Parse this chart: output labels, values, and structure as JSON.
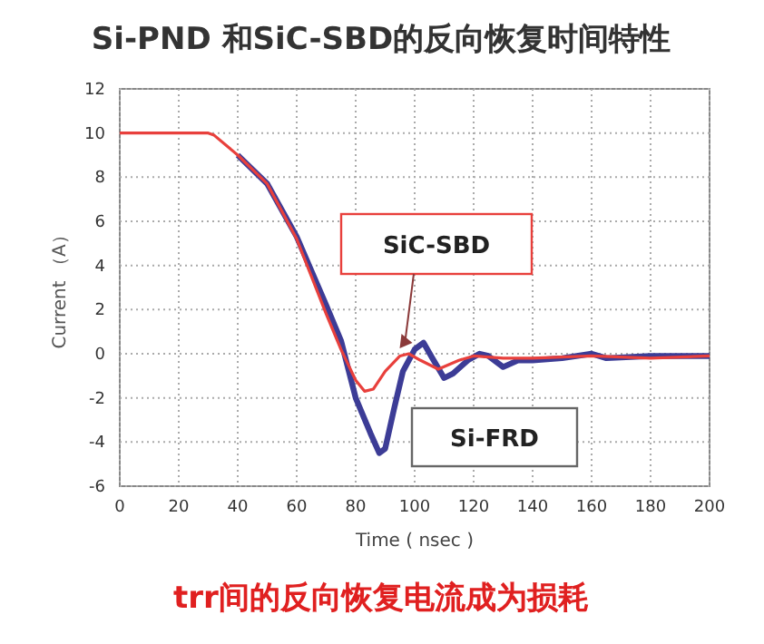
{
  "chart_data": {
    "type": "line",
    "title": "Si-PND 和SiC-SBD的反向恢复时间特性",
    "xlabel": "Time ( nsec )",
    "ylabel": "Current （A）",
    "annotations": [
      "trr间的反向恢复电流成为损耗"
    ],
    "xlim": [
      0,
      200
    ],
    "ylim": [
      -6,
      12
    ],
    "xticks": [
      0,
      20,
      40,
      60,
      80,
      100,
      120,
      140,
      160,
      180,
      200
    ],
    "yticks": [
      -6,
      -4,
      -2,
      0,
      2,
      4,
      6,
      8,
      10,
      12
    ],
    "grid": true,
    "legend": false,
    "marker": "none",
    "line_style": "solid",
    "series": [
      {
        "name": "Si-FRD",
        "color": "#3c3c96",
        "x": [
          40,
          50,
          60,
          70,
          75,
          80,
          85,
          88,
          90,
          93,
          96,
          100,
          103,
          106,
          110,
          113,
          118,
          122,
          125,
          130,
          135,
          140,
          150,
          160,
          165,
          180,
          200
        ],
        "values": [
          9,
          7.7,
          5.3,
          2.2,
          0.6,
          -2,
          -3.6,
          -4.5,
          -4.3,
          -2.5,
          -0.8,
          0.2,
          0.5,
          -0.2,
          -1.1,
          -0.9,
          -0.3,
          0,
          -0.1,
          -0.6,
          -0.3,
          -0.3,
          -0.2,
          0,
          -0.2,
          -0.1,
          -0.1
        ]
      },
      {
        "name": "SiC-SBD",
        "color": "#e8403c",
        "x": [
          0,
          30,
          32,
          40,
          50,
          60,
          70,
          75,
          80,
          83,
          86,
          90,
          95,
          98,
          102,
          108,
          115,
          120,
          130,
          140,
          160,
          180,
          200
        ],
        "values": [
          10,
          10,
          9.9,
          9,
          7.7,
          5.2,
          1.8,
          0.2,
          -1.2,
          -1.7,
          -1.6,
          -0.8,
          -0.1,
          0,
          -0.3,
          -0.7,
          -0.3,
          -0.1,
          -0.2,
          -0.2,
          -0.1,
          -0.2,
          -0.1
        ]
      }
    ]
  }
}
